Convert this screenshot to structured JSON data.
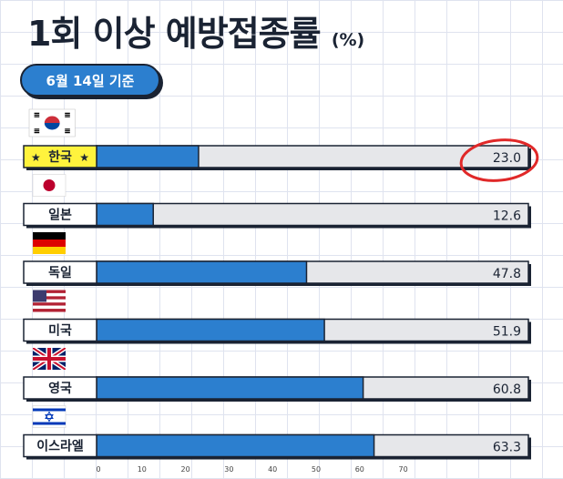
{
  "title": "1회 이상 예방접종률",
  "title_unit": "(%)",
  "date_badge": "6월 14일 기준",
  "colors": {
    "bar_fill": "#2c7fcf",
    "bar_track": "#e6e7ea",
    "outline": "#1a2333",
    "highlight_label": "#fff33d",
    "highlight_circle": "#e02828"
  },
  "chart_data": {
    "type": "bar",
    "orientation": "horizontal",
    "categories": [
      "한국",
      "일본",
      "독일",
      "미국",
      "영국",
      "이스라엘"
    ],
    "flags": [
      "korea-flag",
      "japan-flag",
      "germany-flag",
      "usa-flag",
      "uk-flag",
      "israel-flag"
    ],
    "values": [
      23.0,
      12.6,
      47.8,
      51.9,
      60.8,
      63.3
    ],
    "value_labels": [
      "23.0",
      "12.6",
      "47.8",
      "51.9",
      "60.8",
      "63.3"
    ],
    "highlight_index": 0,
    "highlight_decoration": "★",
    "xlim": [
      0,
      100
    ],
    "x_ticks": [
      0,
      10,
      20,
      30,
      40,
      50,
      60,
      70
    ],
    "grid": true
  }
}
